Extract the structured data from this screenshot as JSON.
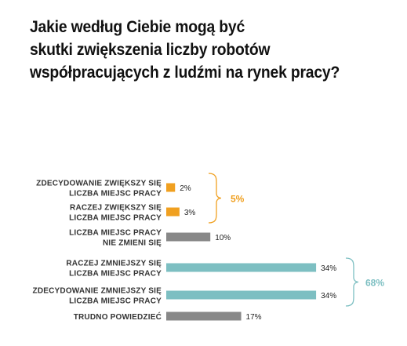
{
  "title_lines": [
    "Jakie według Ciebie mogą być",
    "skutki zwiększenia liczby robotów",
    "współpracujących z ludźmi na rynek pracy?"
  ],
  "chart_data": {
    "type": "bar",
    "orientation": "horizontal",
    "title": "Jakie według Ciebie mogą być skutki zwiększenia liczby robotów współpracujących z ludźmi na rynek pracy?",
    "categories": [
      [
        "ZDECYDOWANIE ZWIĘKSZY SIĘ",
        "LICZBA MIEJSC PRACY"
      ],
      [
        "RACZEJ ZWIĘKSZY SIĘ",
        "LICZBA MIEJSC PRACY"
      ],
      [
        "LICZBA MIEJSC PRACY",
        "NIE ZMIENI SIĘ"
      ],
      [
        "RACZEJ ZMNIEJSZY SIĘ",
        "LICZBA MIEJSC PRACY"
      ],
      [
        "ZDECYDOWANIE ZMNIEJSZY SIĘ",
        "LICZBA MIEJSC PRACY"
      ],
      [
        "TRUDNO POWIEDZIEĆ"
      ]
    ],
    "values": [
      2,
      3,
      10,
      34,
      34,
      17
    ],
    "value_labels": [
      "2%",
      "3%",
      "10%",
      "34%",
      "34%",
      "17%"
    ],
    "bar_colors": [
      "#f0a020",
      "#f0a020",
      "#888888",
      "#7dbfc2",
      "#7dbfc2",
      "#888888"
    ],
    "groups": [
      {
        "label": "5%",
        "from": 0,
        "to": 1,
        "color": "#f0a020"
      },
      {
        "label": "68%",
        "from": 3,
        "to": 4,
        "color": "#7dbfc2"
      }
    ],
    "xlim": [
      0,
      40
    ],
    "grid": false,
    "legend": "none"
  }
}
